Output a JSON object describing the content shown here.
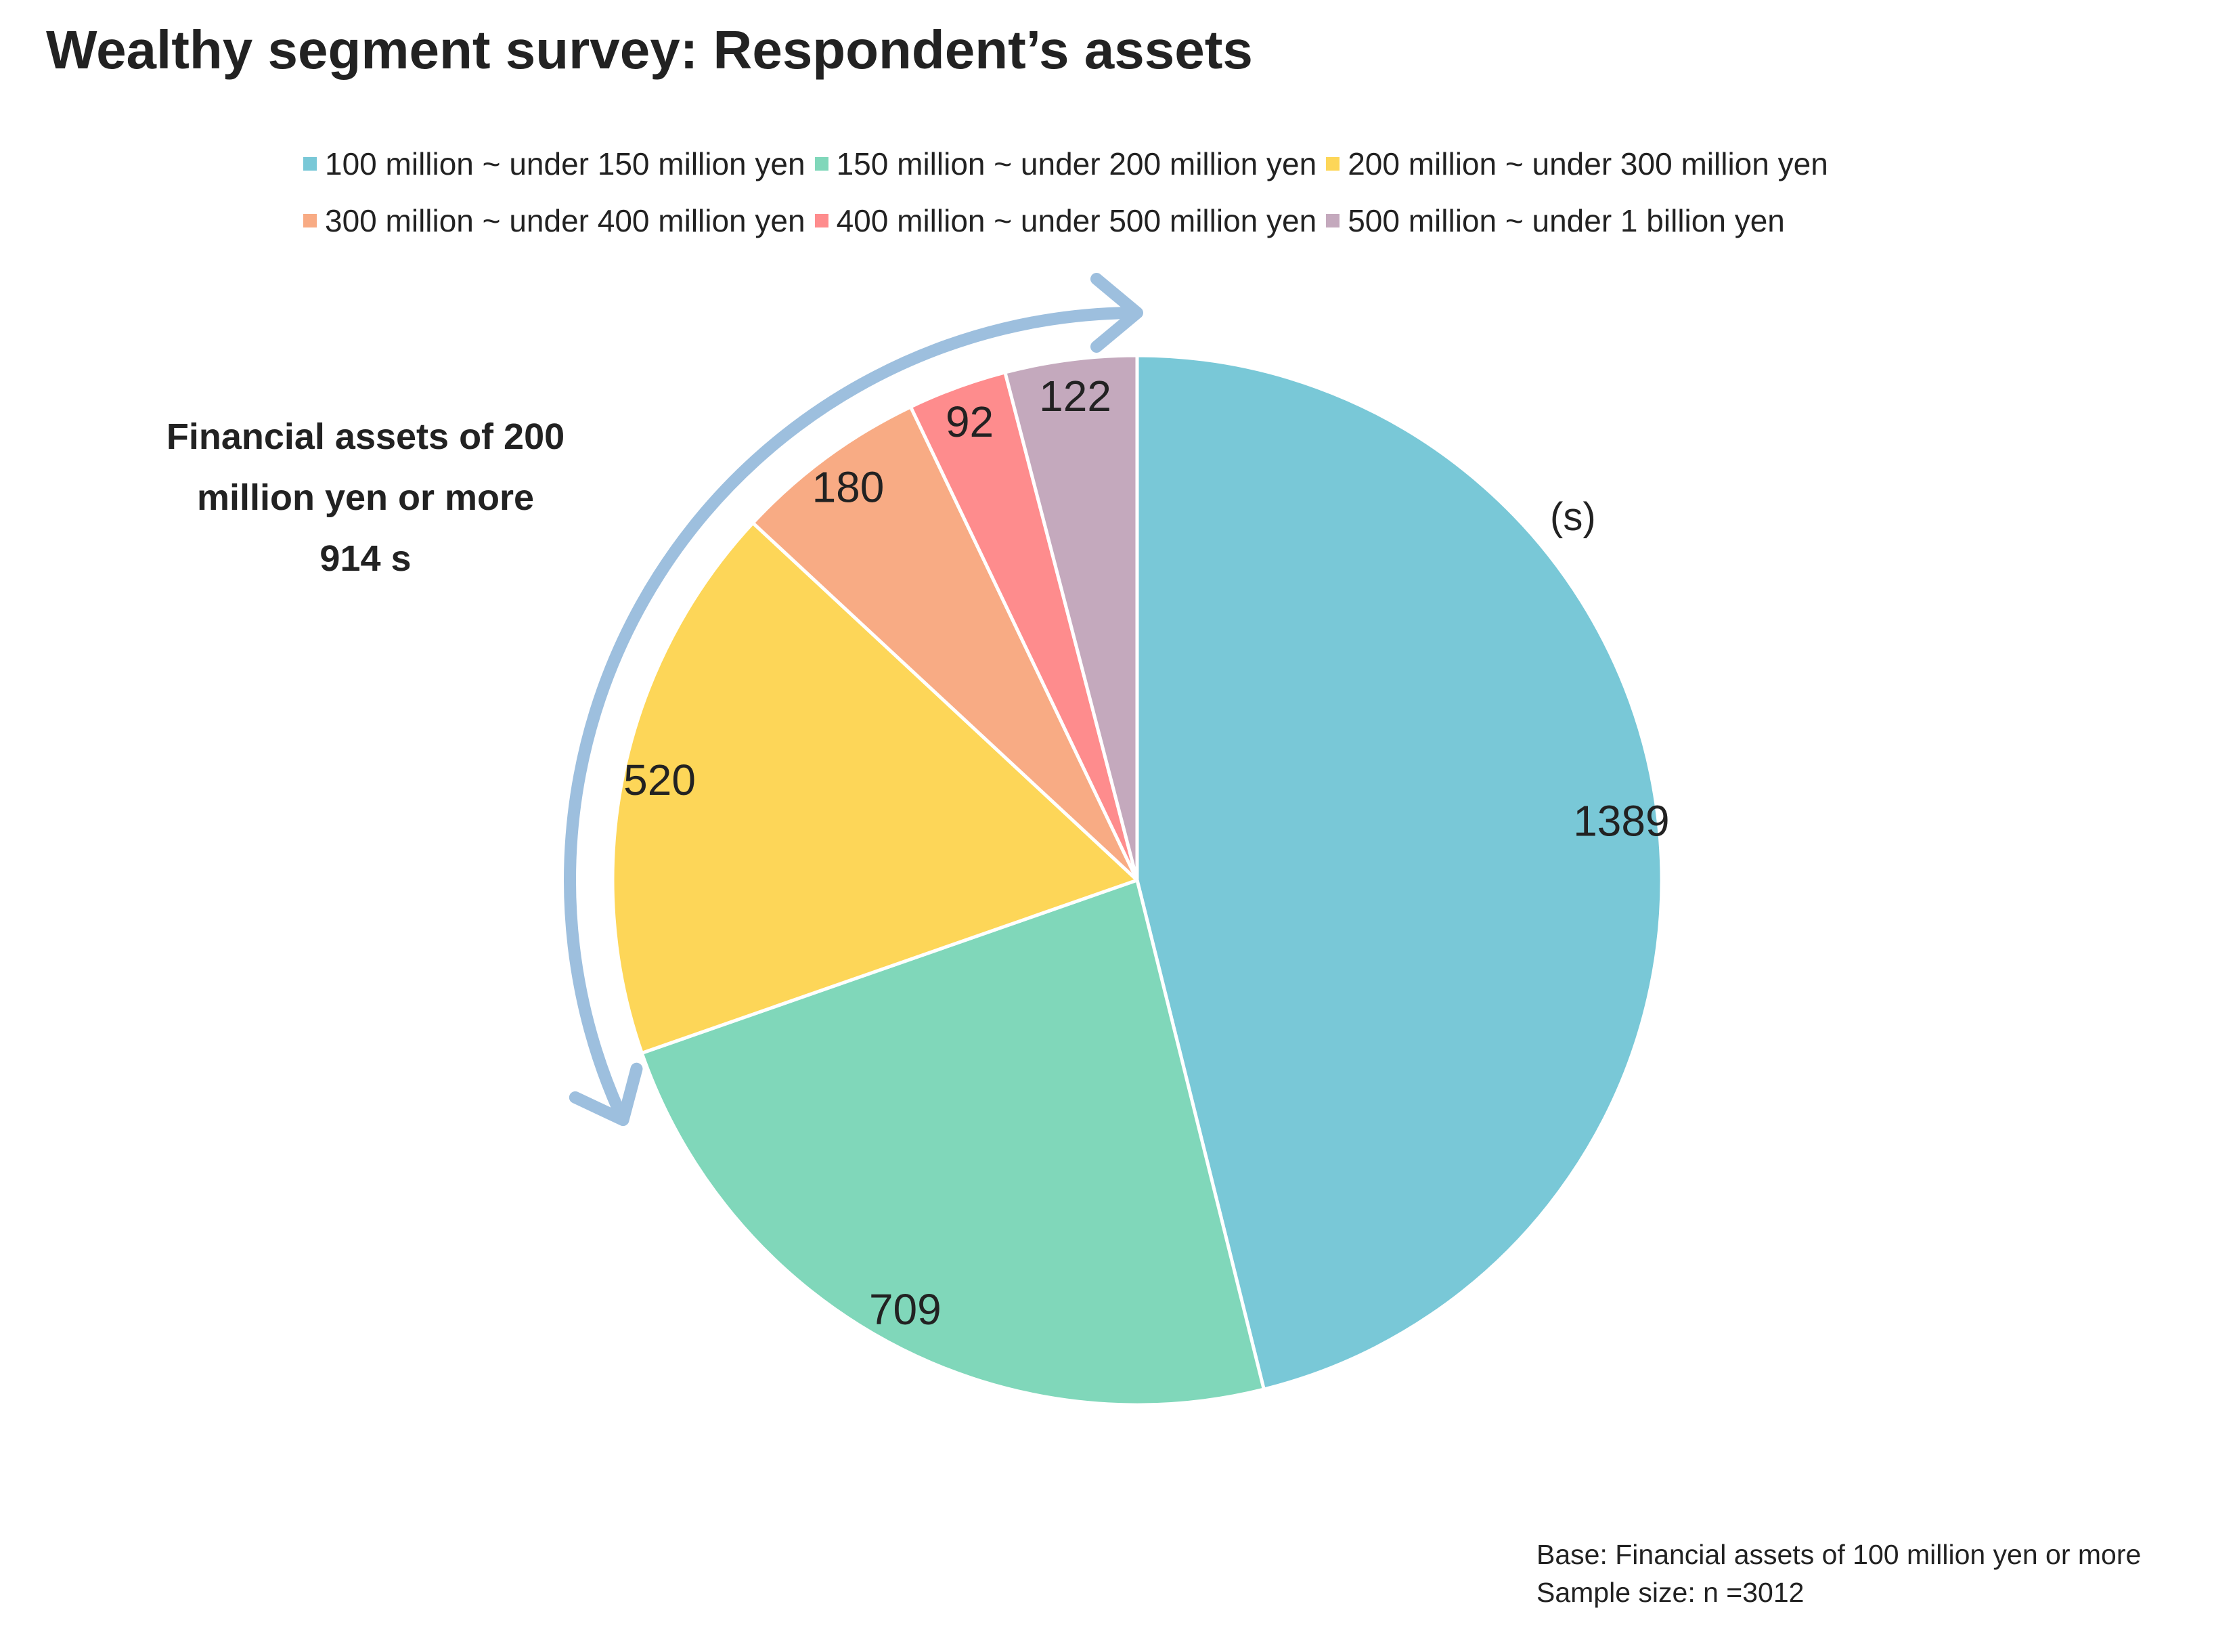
{
  "chart_data": {
    "type": "pie",
    "title": "Wealthy segment survey: Respondent’s assets",
    "categories": [
      "100 million ~ under 150 million yen",
      "150 million ~ under 200 million yen",
      "200 million ~ under 300 million yen",
      "300 million ~ under 400 million yen",
      "400 million ~ under 500 million yen",
      "500 million ~ under 1 billion yen"
    ],
    "values": [
      1389,
      709,
      520,
      180,
      92,
      122
    ],
    "colors": [
      "#79c8d7",
      "#80d7ba",
      "#fdd658",
      "#f8ab84",
      "#fe8c8d",
      "#c4a9bd"
    ],
    "start_angle": "12 o'clock",
    "direction": "clockwise",
    "unit_label": "(s)",
    "legend": {
      "placement": "top",
      "columns": 3
    },
    "annotation": {
      "lines": [
        "Financial assets of 200",
        "million yen or more",
        "914 s"
      ],
      "arrow_color": "#9dbfde"
    },
    "footnote": {
      "base": "Base: Financial assets of 100 million yen or more",
      "sample": "Sample size:  n =3012"
    }
  }
}
